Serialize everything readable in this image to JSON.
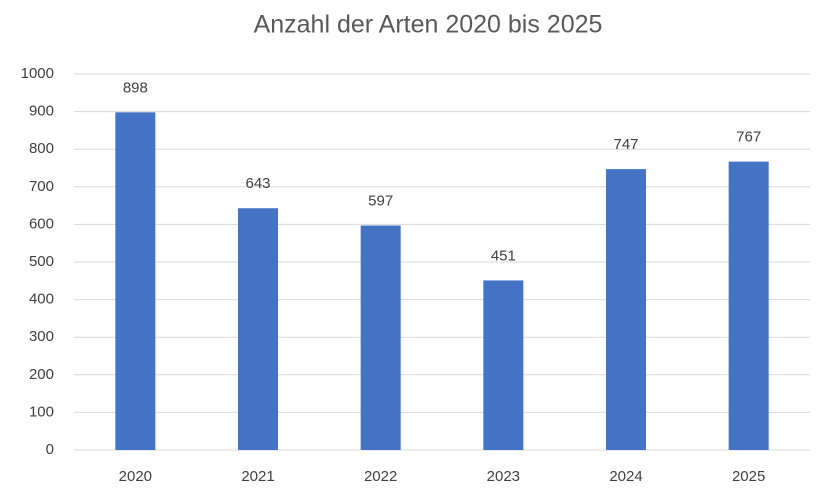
{
  "chart_data": {
    "type": "bar",
    "title": "Anzahl der Arten 2020 bis 2025",
    "categories": [
      "2020",
      "2021",
      "2022",
      "2023",
      "2024",
      "2025"
    ],
    "values": [
      898,
      643,
      597,
      451,
      747,
      767
    ],
    "color": "#4472c4",
    "ylim": [
      0,
      1000
    ],
    "yticks": [
      0,
      100,
      200,
      300,
      400,
      500,
      600,
      700,
      800,
      900,
      1000
    ],
    "grid": true
  }
}
